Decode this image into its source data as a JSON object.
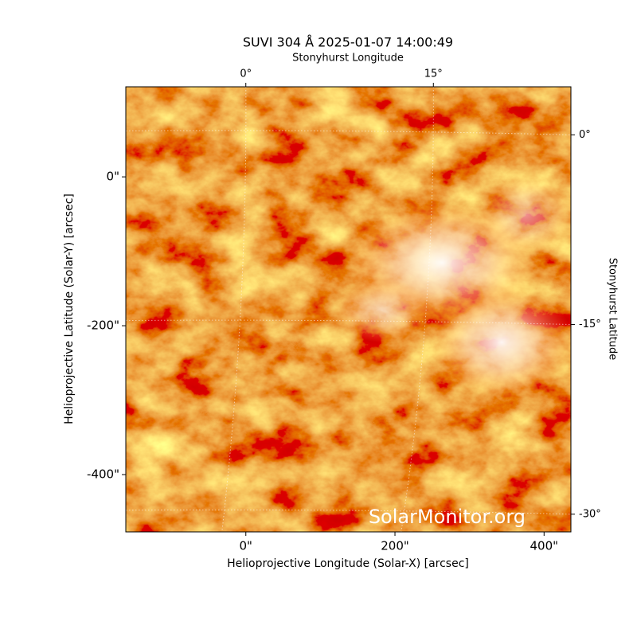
{
  "chart_data": {
    "type": "image",
    "title": "SUVI 304 Å 2025-01-07 14:00:49",
    "xlabel": "Helioprojective Longitude (Solar-X) [arcsec]",
    "ylabel": "Helioprojective Latitude (Solar-Y) [arcsec]",
    "x2label": "Stonyhurst Longitude",
    "y2label": "Stonyhurst Latitude",
    "watermark": "SolarMonitor.org",
    "xlim": [
      -161,
      436
    ],
    "ylim": [
      -477,
      121
    ],
    "xticks": [
      {
        "value": 0,
        "label": "0\""
      },
      {
        "value": 200,
        "label": "200\""
      },
      {
        "value": 400,
        "label": "400\""
      }
    ],
    "yticks": [
      {
        "value": 0,
        "label": "0\""
      },
      {
        "value": -200,
        "label": "-200\""
      },
      {
        "value": -400,
        "label": "-400\""
      }
    ],
    "x2lim": [
      -9.6,
      26
    ],
    "x2ticks": [
      {
        "value": 0,
        "label": "0°"
      },
      {
        "value": 15,
        "label": "15°"
      }
    ],
    "y2lim": [
      -31.4,
      3.8
    ],
    "y2ticks": [
      {
        "value": 0,
        "label": "0°"
      },
      {
        "value": -15,
        "label": "-15°"
      },
      {
        "value": -30,
        "label": "-30°"
      }
    ],
    "grid": true
  }
}
